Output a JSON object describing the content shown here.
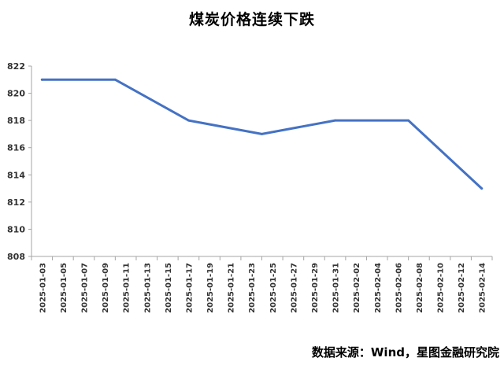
{
  "chart_data": {
    "type": "line",
    "title": "煤炭价格连续下跌",
    "xlabel": "",
    "ylabel": "",
    "ylim": [
      808,
      822
    ],
    "yticks": [
      808,
      810,
      812,
      814,
      816,
      818,
      820,
      822
    ],
    "x": [
      "2025-01-03",
      "2025-01-05",
      "2025-01-07",
      "2025-01-09",
      "2025-01-11",
      "2025-01-13",
      "2025-01-15",
      "2025-01-17",
      "2025-01-19",
      "2025-01-21",
      "2025-01-23",
      "2025-01-25",
      "2025-01-27",
      "2025-01-29",
      "2025-01-31",
      "2025-02-02",
      "2025-02-04",
      "2025-02-06",
      "2025-02-08",
      "2025-02-10",
      "2025-02-12",
      "2025-02-14"
    ],
    "series": [
      {
        "color": "#4472C4",
        "points": [
          {
            "x": "2025-01-03",
            "y": 821
          },
          {
            "x": "2025-01-10",
            "y": 821
          },
          {
            "x": "2025-01-17",
            "y": 818
          },
          {
            "x": "2025-01-24",
            "y": 817
          },
          {
            "x": "2025-01-31",
            "y": 818
          },
          {
            "x": "2025-02-07",
            "y": 818
          },
          {
            "x": "2025-02-14",
            "y": 813
          }
        ]
      }
    ],
    "grid": false,
    "legend": "none"
  },
  "footer": {
    "source": "数据来源：Wind，星图金融研究院"
  }
}
